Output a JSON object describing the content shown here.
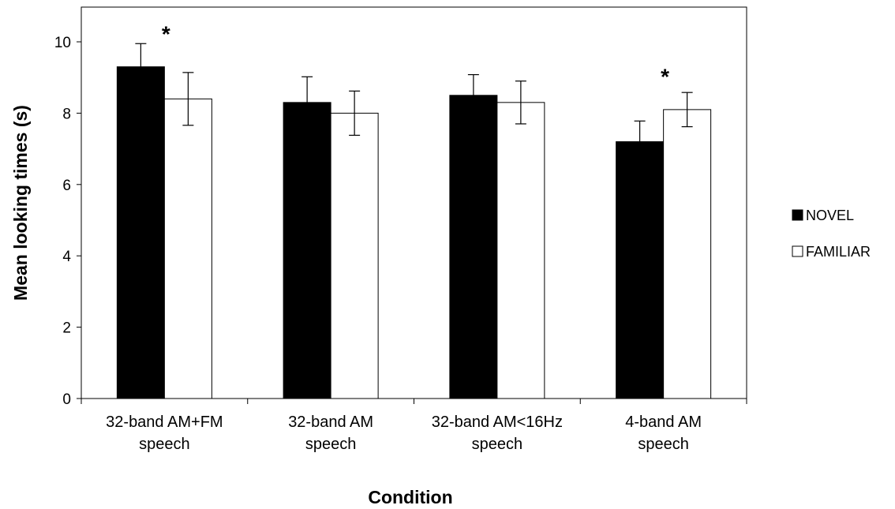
{
  "chart_data": {
    "type": "bar",
    "title": "",
    "xlabel": "Condition",
    "ylabel": "Mean looking times (s)",
    "ylim": [
      0,
      11
    ],
    "yticks": [
      0,
      2,
      4,
      6,
      8,
      10
    ],
    "grid": false,
    "legend_position": "right",
    "categories": [
      [
        "32-band AM+FM",
        "speech"
      ],
      [
        "32-band AM",
        "speech"
      ],
      [
        "32-band AM<16Hz",
        "speech"
      ],
      [
        "4-band AM",
        "speech"
      ]
    ],
    "series": [
      {
        "name": "NOVEL",
        "color": "#000000",
        "values": [
          9.3,
          8.3,
          8.5,
          7.2
        ],
        "errors": [
          0.65,
          0.72,
          0.58,
          0.58
        ]
      },
      {
        "name": "FAMILIAR",
        "color": "#ffffff",
        "values": [
          8.4,
          8.0,
          8.3,
          8.1
        ],
        "errors": [
          0.74,
          0.62,
          0.6,
          0.48
        ]
      }
    ],
    "annotations": [
      {
        "text": "*",
        "category_index": 0,
        "y": 10.5
      },
      {
        "text": "*",
        "category_index": 3,
        "y": 9.3
      }
    ]
  }
}
